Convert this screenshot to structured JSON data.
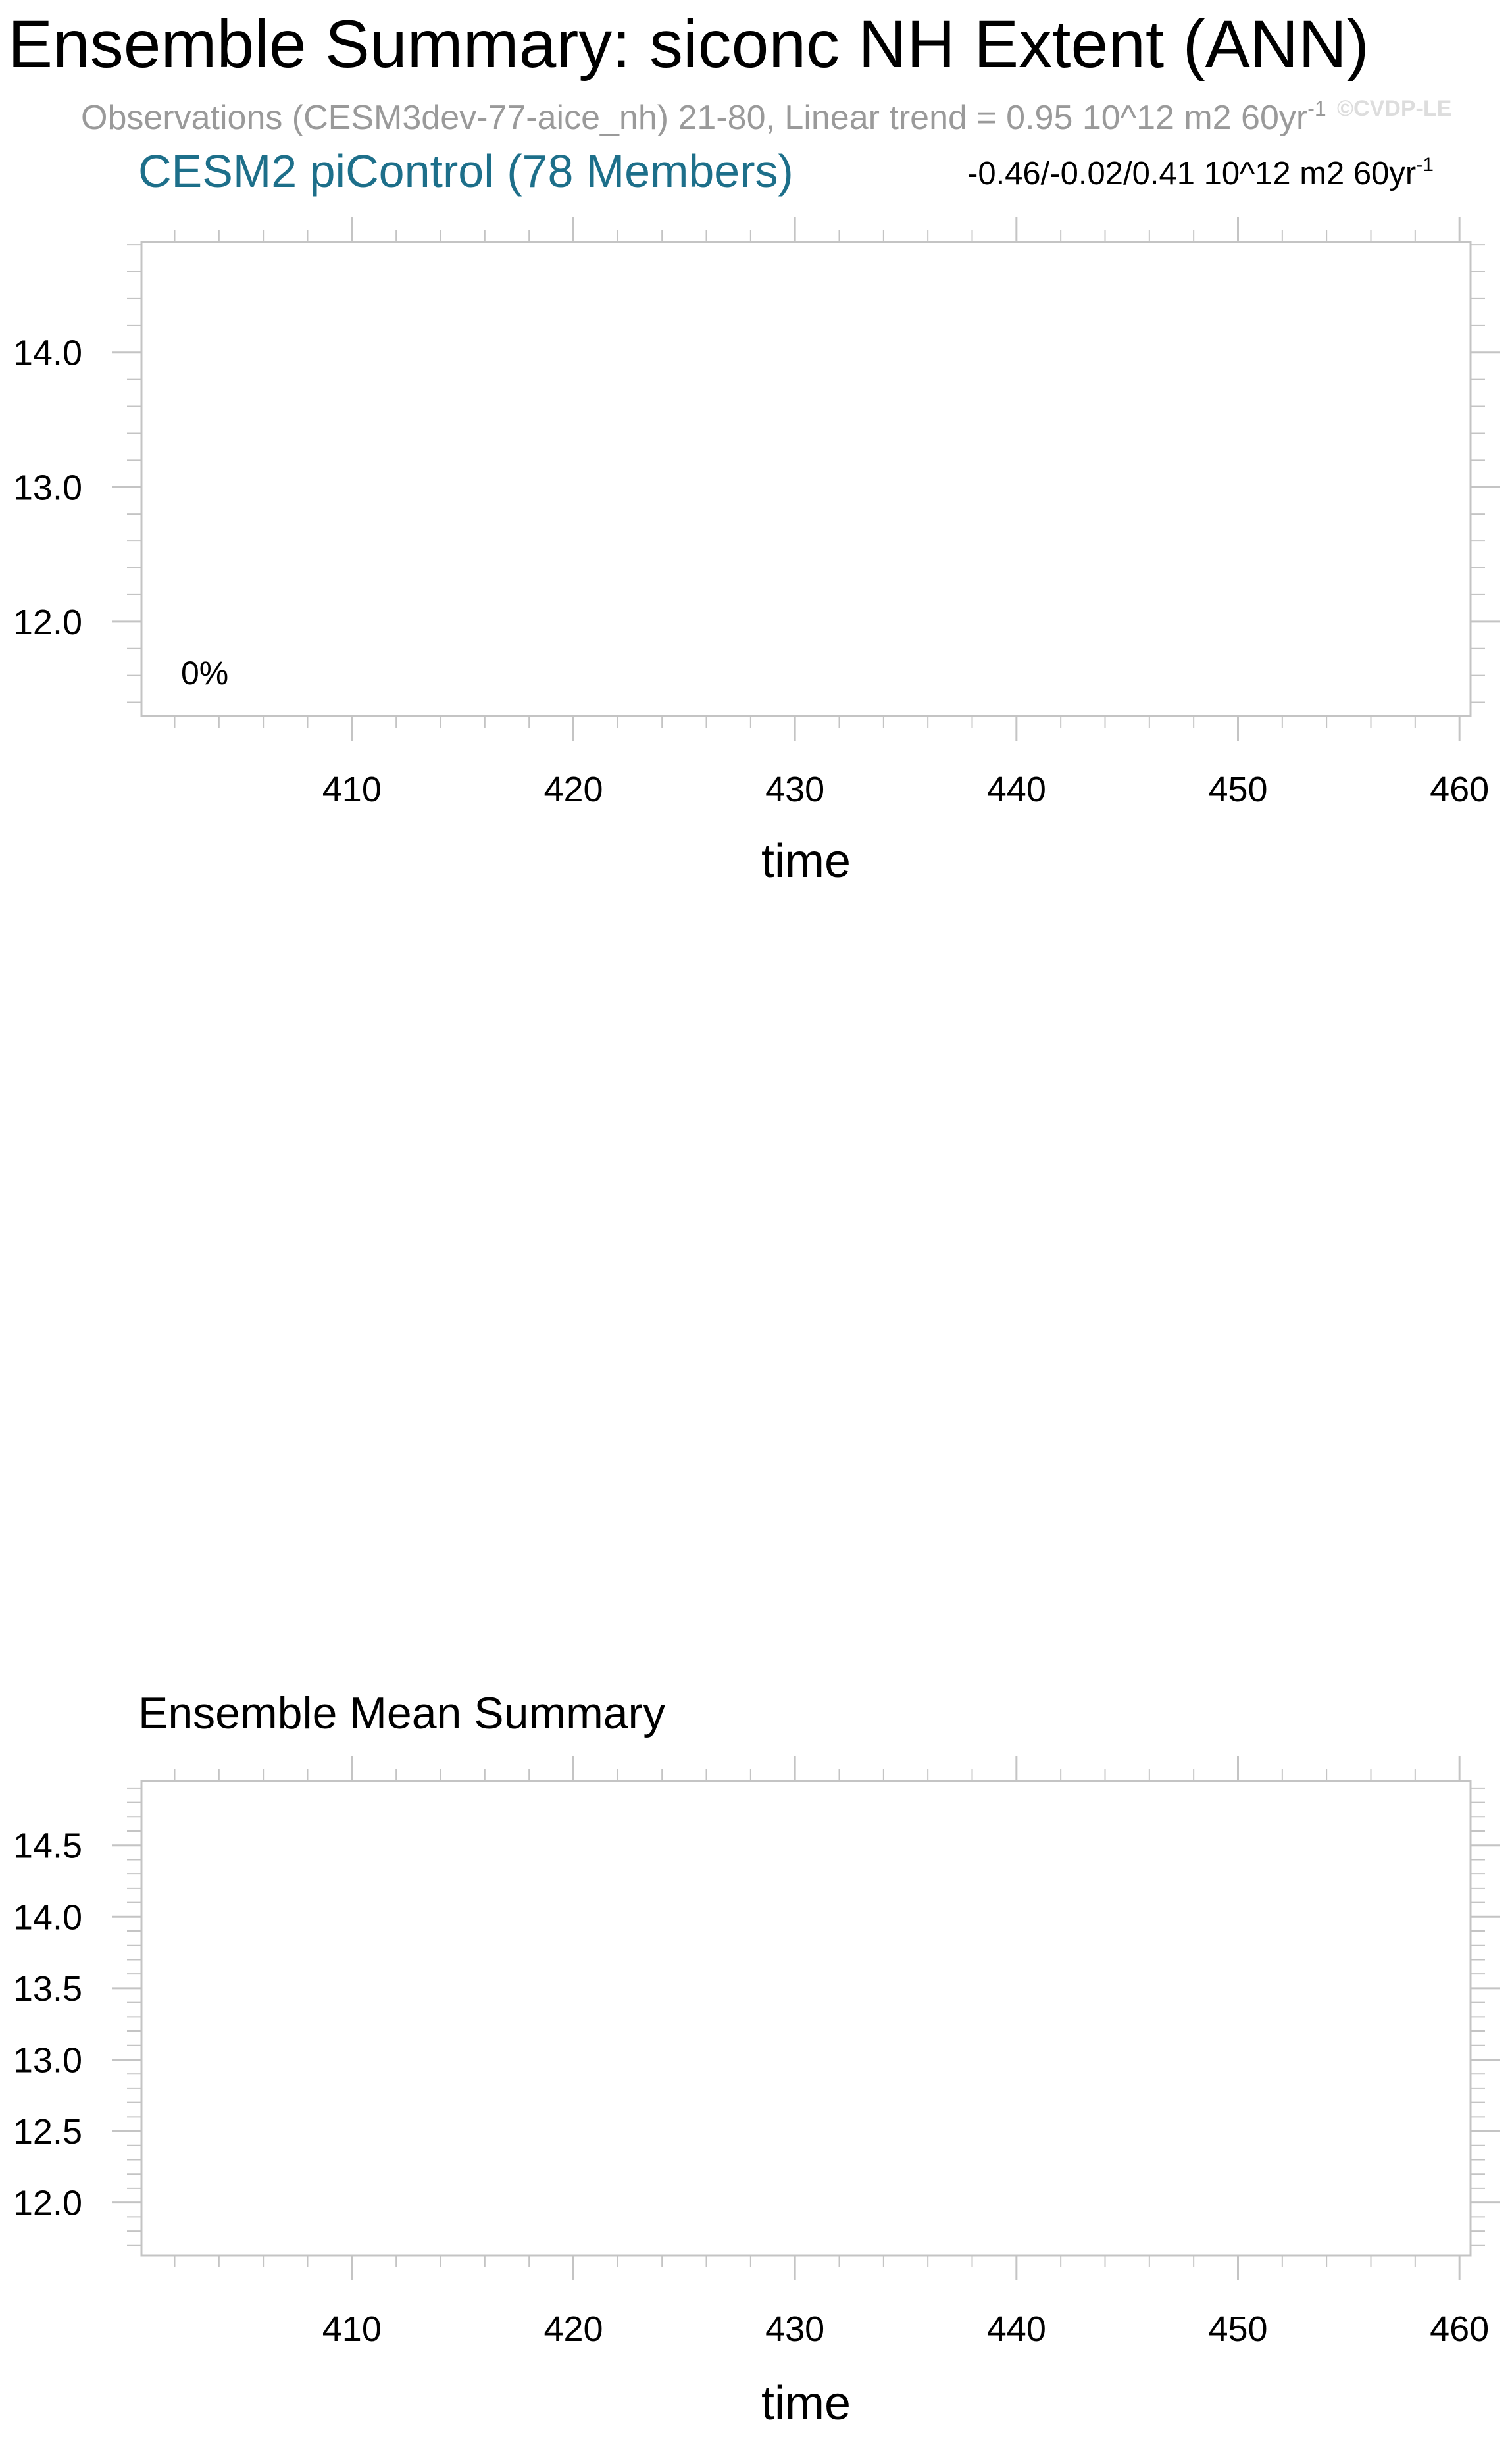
{
  "figure": {
    "title": "Ensemble Summary: siconc NH Extent (ANN)",
    "subtitle": "Observations (CESM3dev-77-aice_nh) 21-80, Linear trend = 0.95 10^12 m2 60yr",
    "subtitle_sup": "-1",
    "watermark": "©CVDP-LE"
  },
  "chart_data": [
    {
      "type": "line",
      "title": "CESM2 piControl (78 Members)",
      "title_color": "#1d6f8a",
      "right_label": "-0.46/-0.02/0.41 10^12 m2 60yr",
      "right_label_sup": "-1",
      "annotation": "0%",
      "xlabel": "time",
      "ylabel": "",
      "xlim": [
        400.5,
        460.5
      ],
      "ylim": [
        11.3,
        14.82
      ],
      "x_major_ticks": [
        410,
        420,
        430,
        440,
        450,
        460
      ],
      "x_tick_labels": [
        "410",
        "420",
        "430",
        "440",
        "450",
        "460"
      ],
      "y_major_ticks": [
        12.0,
        13.0,
        14.0
      ],
      "y_tick_labels": [
        "12.0",
        "13.0",
        "14.0"
      ],
      "y_minor_step": 0.2,
      "grid": false,
      "series": []
    },
    {
      "type": "line",
      "title": "Ensemble Mean Summary",
      "title_color": "#000000",
      "xlabel": "time",
      "ylabel": "",
      "xlim": [
        400.5,
        460.5
      ],
      "ylim": [
        11.63,
        14.95
      ],
      "x_major_ticks": [
        410,
        420,
        430,
        440,
        450,
        460
      ],
      "x_tick_labels": [
        "410",
        "420",
        "430",
        "440",
        "450",
        "460"
      ],
      "y_major_ticks": [
        12.0,
        12.5,
        13.0,
        13.5,
        14.0,
        14.5
      ],
      "y_tick_labels": [
        "12.0",
        "12.5",
        "13.0",
        "13.5",
        "14.0",
        "14.5"
      ],
      "y_minor_step": 0.1,
      "grid": false,
      "series": []
    }
  ]
}
